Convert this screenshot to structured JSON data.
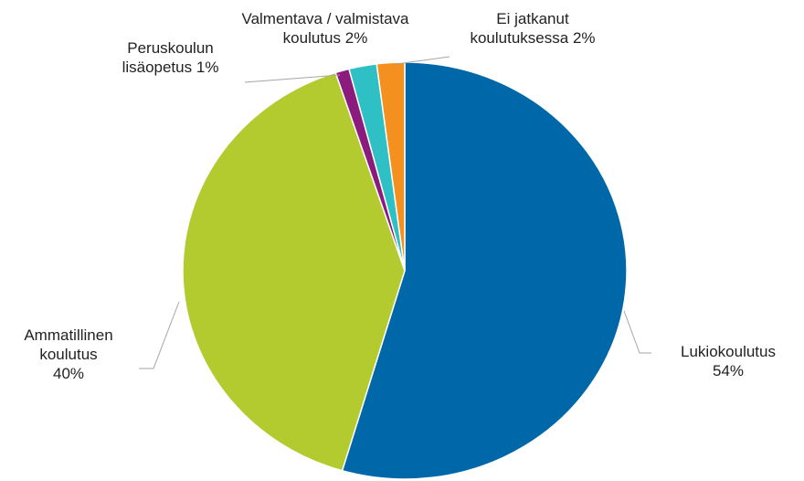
{
  "chart_data": {
    "type": "pie",
    "categories": [
      "Lukiokoulutus",
      "Ammatillinen koulutus",
      "Peruskoulun lisäopetus",
      "Valmentava / valmistava koulutus",
      "Ei jatkanut koulutuksessa"
    ],
    "values": [
      54,
      40,
      1,
      2,
      2
    ],
    "value_labels": [
      "54%",
      "40%",
      "1%",
      "2%",
      "2%"
    ],
    "colors": [
      "#0068a9",
      "#b4cb2f",
      "#8c1b7e",
      "#2ec0c4",
      "#f39020"
    ]
  }
}
